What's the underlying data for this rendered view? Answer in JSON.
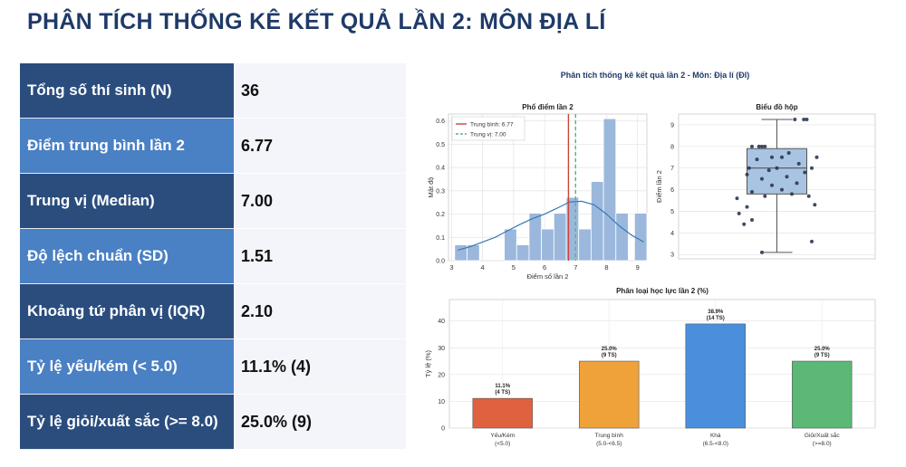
{
  "page_title": "PHÂN TÍCH THỐNG KÊ KẾT QUẢ LẦN 2: MÔN ĐỊA LÍ",
  "stats": [
    {
      "label": "Tổng số thí sinh (N)",
      "value": "36"
    },
    {
      "label": "Điểm trung bình lần 2",
      "value": "6.77"
    },
    {
      "label": "Trung vị (Median)",
      "value": "7.00"
    },
    {
      "label": "Độ lệch chuẩn (SD)",
      "value": "1.51"
    },
    {
      "label": "Khoảng tứ phân vị (IQR)",
      "value": "2.10"
    },
    {
      "label": "Tỷ lệ yếu/kém (< 5.0)",
      "value": "11.1% (4)"
    },
    {
      "label": "Tỷ lệ giỏi/xuất sắc (>= 8.0)",
      "value": "25.0% (9)"
    }
  ],
  "figure_title": "Phân tích thống kê kết quả lần 2 - Môn: Địa lí (Đl)",
  "chart_data": [
    {
      "type": "bar",
      "title": "Phổ điểm lần 2",
      "xlabel": "Điểm số lần 2",
      "ylabel": "Mật độ",
      "xlim": [
        2.9,
        9.3
      ],
      "ylim": [
        0,
        0.63
      ],
      "xticks": [
        3,
        4,
        5,
        6,
        7,
        8,
        9
      ],
      "yticks": [
        0.0,
        0.1,
        0.2,
        0.3,
        0.4,
        0.5,
        0.6
      ],
      "bins": [
        {
          "x0": 3.1,
          "x1": 3.5,
          "density": 0.068
        },
        {
          "x0": 3.5,
          "x1": 3.9,
          "density": 0.068
        },
        {
          "x0": 4.3,
          "x1": 4.7,
          "density": 0.0
        },
        {
          "x0": 4.7,
          "x1": 5.1,
          "density": 0.136
        },
        {
          "x0": 5.1,
          "x1": 5.5,
          "density": 0.068
        },
        {
          "x0": 5.5,
          "x1": 5.9,
          "density": 0.204
        },
        {
          "x0": 5.9,
          "x1": 6.3,
          "density": 0.136
        },
        {
          "x0": 6.3,
          "x1": 6.7,
          "density": 0.204
        },
        {
          "x0": 6.7,
          "x1": 7.1,
          "density": 0.272
        },
        {
          "x0": 7.1,
          "x1": 7.5,
          "density": 0.136
        },
        {
          "x0": 7.5,
          "x1": 7.9,
          "density": 0.34
        },
        {
          "x0": 7.9,
          "x1": 8.3,
          "density": 0.61
        },
        {
          "x0": 8.3,
          "x1": 8.7,
          "density": 0.204
        },
        {
          "x0": 8.9,
          "x1": 9.3,
          "density": 0.204
        }
      ],
      "kde": {
        "x": [
          3.2,
          3.6,
          4.0,
          4.4,
          4.8,
          5.2,
          5.6,
          6.0,
          6.4,
          6.8,
          7.2,
          7.6,
          8.0,
          8.4,
          8.8,
          9.2
        ],
        "y": [
          0.045,
          0.06,
          0.08,
          0.1,
          0.128,
          0.155,
          0.18,
          0.2,
          0.225,
          0.252,
          0.255,
          0.24,
          0.2,
          0.15,
          0.11,
          0.08
        ]
      },
      "mean": 6.77,
      "median": 7.0,
      "legend": [
        "Trung bình: 6.77",
        "Trung vị: 7.00"
      ],
      "legend_position": "top-left",
      "colors": {
        "bar": "#9bb8dc",
        "kde": "#3a77b5",
        "mean": "#c8453a",
        "median": "#55b38a"
      }
    },
    {
      "type": "box",
      "title": "Biểu đồ hộp",
      "ylabel": "Điểm lần 2",
      "ylim": [
        2.8,
        9.5
      ],
      "yticks": [
        3,
        4,
        5,
        6,
        7,
        8,
        9
      ],
      "whisker_low": 3.1,
      "q1": 5.8,
      "median": 7.0,
      "q3": 7.9,
      "whisker_high": 9.25,
      "points": [
        {
          "jitter": -0.18,
          "y": 8.0
        },
        {
          "jitter": -0.15,
          "y": 8.0
        },
        {
          "jitter": -0.12,
          "y": 8.0
        },
        {
          "jitter": -0.25,
          "y": 8.0
        },
        {
          "jitter": 0.18,
          "y": 9.25
        },
        {
          "jitter": 0.3,
          "y": 9.25
        },
        {
          "jitter": 0.27,
          "y": 9.25
        },
        {
          "jitter": 0.12,
          "y": 7.7
        },
        {
          "jitter": 0.4,
          "y": 7.5
        },
        {
          "jitter": -0.05,
          "y": 7.5
        },
        {
          "jitter": 0.05,
          "y": 7.5
        },
        {
          "jitter": -0.2,
          "y": 7.4
        },
        {
          "jitter": 0.22,
          "y": 7.2
        },
        {
          "jitter": 0.35,
          "y": 7.0
        },
        {
          "jitter": -0.28,
          "y": 7.0
        },
        {
          "jitter": 0.0,
          "y": 7.0
        },
        {
          "jitter": -0.08,
          "y": 6.9
        },
        {
          "jitter": 0.28,
          "y": 6.8
        },
        {
          "jitter": -0.3,
          "y": 6.7
        },
        {
          "jitter": 0.1,
          "y": 6.6
        },
        {
          "jitter": -0.15,
          "y": 6.5
        },
        {
          "jitter": 0.2,
          "y": 6.3
        },
        {
          "jitter": -0.05,
          "y": 6.2
        },
        {
          "jitter": 0.05,
          "y": 6.0
        },
        {
          "jitter": -0.25,
          "y": 5.9
        },
        {
          "jitter": 0.15,
          "y": 5.8
        },
        {
          "jitter": -0.12,
          "y": 5.7
        },
        {
          "jitter": 0.32,
          "y": 5.7
        },
        {
          "jitter": -0.4,
          "y": 5.6
        },
        {
          "jitter": -0.3,
          "y": 5.2
        },
        {
          "jitter": 0.38,
          "y": 5.3
        },
        {
          "jitter": -0.38,
          "y": 4.9
        },
        {
          "jitter": -0.33,
          "y": 4.4
        },
        {
          "jitter": -0.25,
          "y": 4.6
        },
        {
          "jitter": 0.35,
          "y": 3.6
        },
        {
          "jitter": -0.15,
          "y": 3.1
        }
      ],
      "colors": {
        "box": "#a9c4e2",
        "edge": "#555555",
        "point": "#2c3650"
      }
    },
    {
      "type": "bar",
      "title": "Phân loại học lực lần 2 (%)",
      "ylabel": "Tỷ lệ (%)",
      "ylim": [
        0,
        48
      ],
      "yticks": [
        0,
        10,
        20,
        30,
        40
      ],
      "categories": [
        {
          "name": "Yếu/Kém",
          "range": "(<5.0)"
        },
        {
          "name": "Trung bình",
          "range": "(5.0-<6.5)"
        },
        {
          "name": "Khá",
          "range": "(6.5-<8.0)"
        },
        {
          "name": "Giỏi/Xuất sắc",
          "range": "(>=8.0)"
        }
      ],
      "values": [
        11.1,
        25.0,
        38.9,
        25.0
      ],
      "labels": [
        {
          "pct": "11.1%",
          "count": "(4 TS)"
        },
        {
          "pct": "25.0%",
          "count": "(9 TS)"
        },
        {
          "pct": "38.9%",
          "count": "(14 TS)"
        },
        {
          "pct": "25.0%",
          "count": "(9 TS)"
        }
      ],
      "colors": [
        "#e0613f",
        "#f0a23a",
        "#4a8fdb",
        "#5bb876"
      ]
    }
  ]
}
